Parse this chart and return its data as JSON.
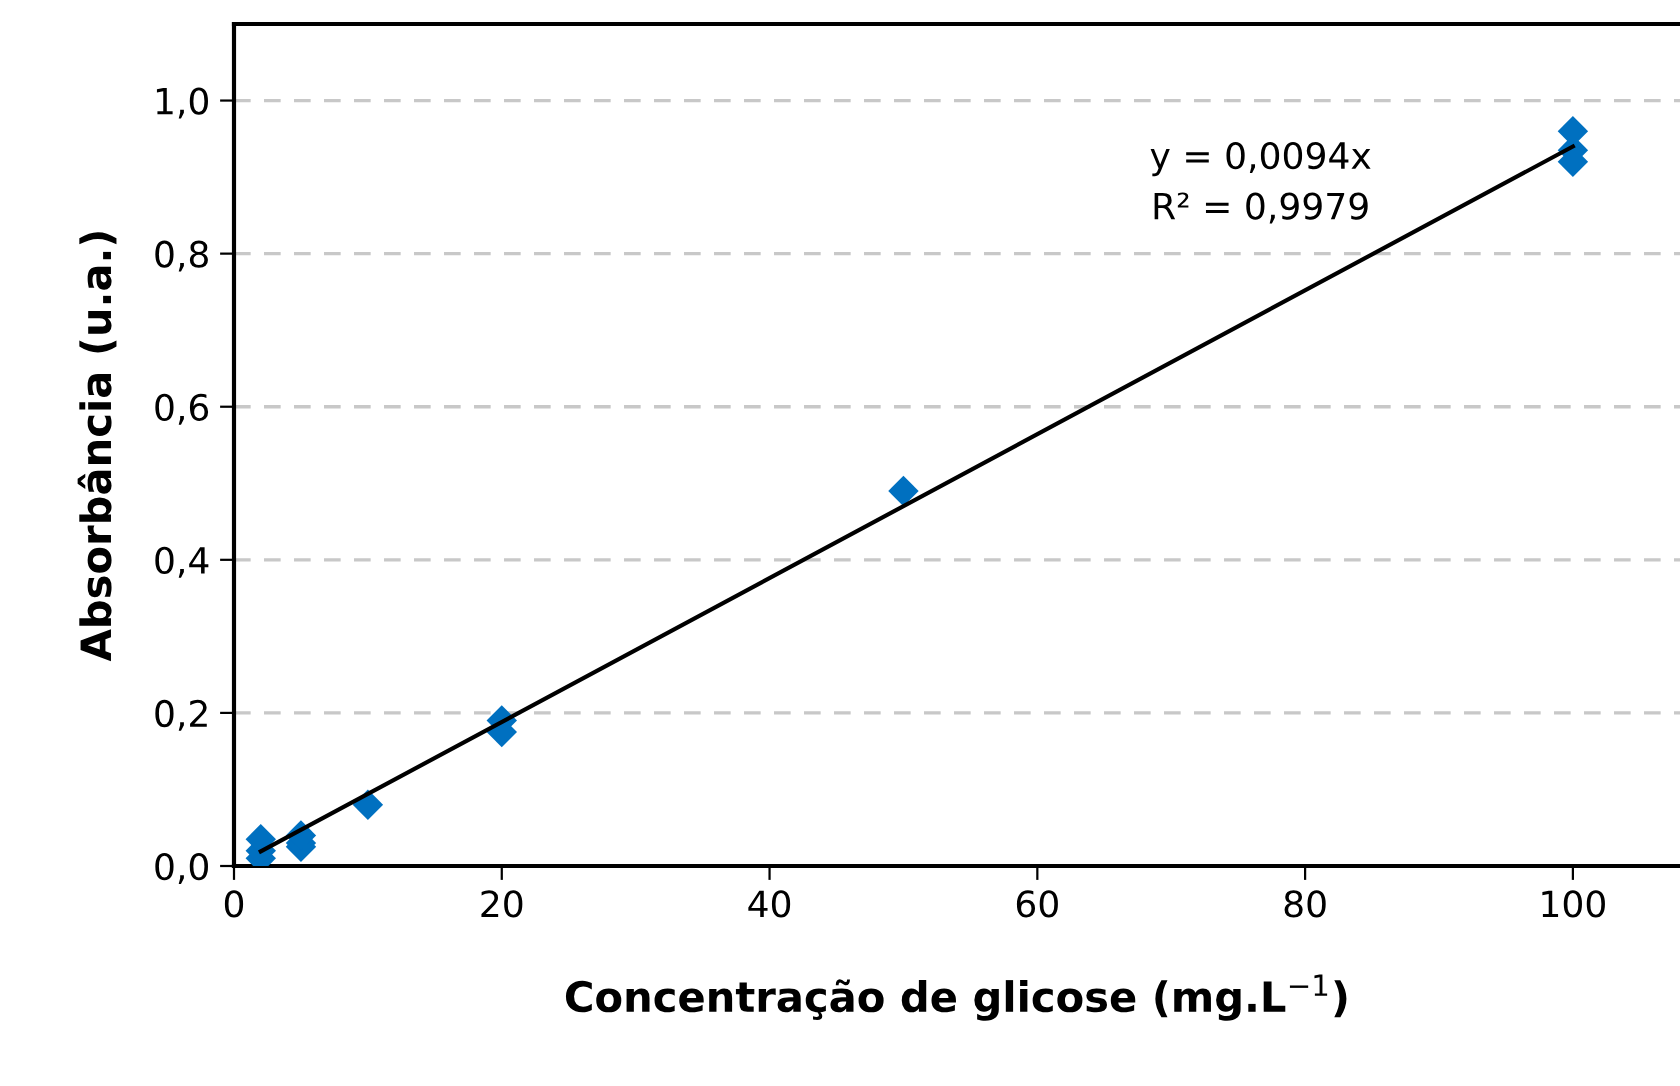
{
  "chart_data": {
    "type": "scatter",
    "xlabel": "Concentração de glicose (mg.L$^{−1}$)",
    "ylabel": "Absorbância (u.a.)",
    "series": [
      {
        "color": "#0070c0",
        "marker": "diamond",
        "x": [
          2,
          2,
          2,
          5,
          5,
          5,
          10,
          20,
          20,
          50,
          100,
          100,
          100
        ],
        "values": [
          0.01,
          0.02,
          0.035,
          0.025,
          0.03,
          0.04,
          0.08,
          0.19,
          0.175,
          0.49,
          0.96,
          0.935,
          0.92
        ]
      },
      {
        "type": "line",
        "color": "#000000",
        "marker": "none",
        "line_style": "solid",
        "x": [
          2,
          100
        ],
        "values": [
          0.019,
          0.94
        ]
      }
    ],
    "annotations": [
      "y = 0,0094x",
      "R² = 0,9979"
    ],
    "xlim": [
      0,
      108
    ],
    "xticks": [
      0,
      20,
      40,
      60,
      80,
      100
    ],
    "ylim": [
      0,
      1.1
    ],
    "yticks": [
      {
        "value": 0,
        "label": "0,0"
      },
      {
        "value": 0.2,
        "label": "0,2"
      },
      {
        "value": 0.4,
        "label": "0,4"
      },
      {
        "value": 0.6,
        "label": "0,6"
      },
      {
        "value": 0.8,
        "label": "0,8"
      },
      {
        "value": 1.0,
        "label": "1,0"
      }
    ],
    "grid": "y",
    "legend": false
  }
}
